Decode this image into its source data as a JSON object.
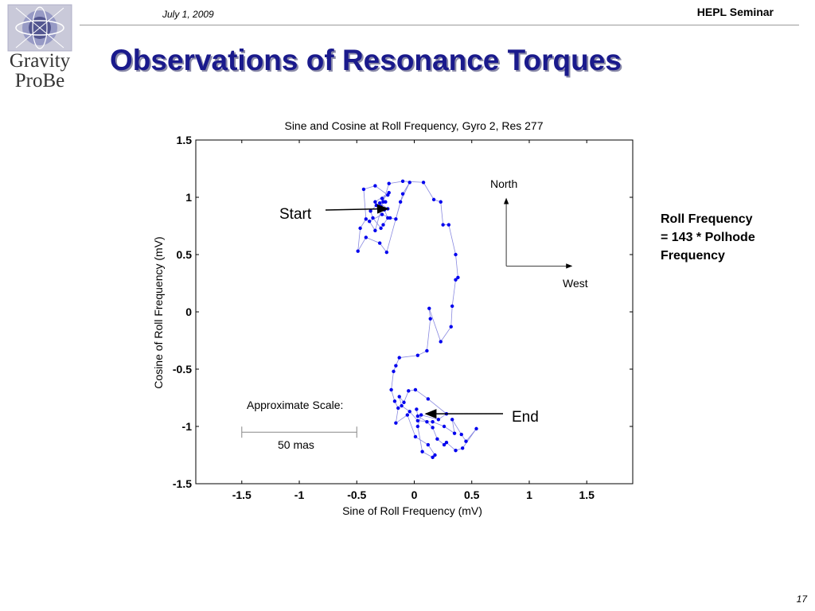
{
  "header": {
    "date": "July 1, 2009",
    "seminar": "HEPL Seminar",
    "logo_text_1": "Gravity",
    "logo_text_2": "ProBe"
  },
  "slide": {
    "title": "Observations of Resonance Torques",
    "note_line1": "Roll Frequency",
    "note_line2": "= 143 * Polhode",
    "note_line3": "Frequency",
    "page_number": "17"
  },
  "colors": {
    "title": "#1a1a8c",
    "data": "#0000ee",
    "line": "#8888dd"
  },
  "chart_data": {
    "type": "scatter",
    "title": "Sine and Cosine at Roll Frequency, Gyro 2, Res 277",
    "xlabel": "Sine of Roll Frequency (mV)",
    "ylabel": "Cosine of Roll Frequency (mV)",
    "xlim": [
      -1.9,
      1.9
    ],
    "ylim": [
      -1.5,
      1.5
    ],
    "xticks": [
      "-1.5",
      "-1",
      "-0.5",
      "0",
      "0.5",
      "1",
      "1.5"
    ],
    "yticks": [
      "1.5",
      "1",
      "0.5",
      "0",
      "-0.5",
      "-1",
      "-1.5"
    ],
    "grid": false,
    "connected": true,
    "series": [
      {
        "x": [
          -0.29,
          -0.23,
          -0.3,
          -0.22,
          -0.34,
          -0.3,
          -0.26,
          -0.23,
          -0.27,
          -0.29,
          -0.36,
          -0.38,
          -0.33,
          -0.25,
          -0.28,
          -0.23,
          -0.34,
          -0.44,
          -0.42,
          -0.47,
          -0.49,
          -0.42,
          -0.3,
          -0.24,
          -0.12,
          -0.04,
          -0.1,
          -0.16,
          -0.21,
          -0.28,
          -0.39,
          -0.34,
          -0.27,
          -0.22,
          -0.1,
          0.08,
          0.17,
          0.23,
          0.25,
          0.3,
          0.36,
          0.38,
          0.36,
          0.33,
          0.32,
          0.23,
          0.13,
          0.14,
          0.11,
          0.03,
          -0.13,
          -0.16,
          -0.18,
          -0.2,
          -0.17,
          -0.14,
          -0.16,
          -0.06,
          0.01,
          0.12,
          0.18,
          0.16,
          0.07,
          0.03,
          0.06,
          0.21,
          0.28,
          0.12,
          0.01,
          -0.05,
          -0.09,
          -0.13,
          -0.11,
          -0.04,
          0.03,
          0.16,
          0.26,
          0.35,
          0.33,
          0.41,
          0.45,
          0.54,
          0.42,
          0.36,
          0.28,
          0.26,
          0.2,
          0.16,
          0.11,
          0.03,
          0.02
        ],
        "y": [
          0.92,
          0.9,
          0.95,
          1.04,
          0.96,
          0.92,
          0.89,
          0.82,
          0.76,
          0.73,
          0.82,
          0.88,
          0.93,
          0.96,
          0.99,
          1.02,
          1.1,
          1.07,
          0.81,
          0.73,
          0.53,
          0.65,
          0.6,
          0.52,
          0.96,
          1.13,
          1.03,
          0.81,
          0.82,
          0.85,
          0.79,
          0.71,
          0.96,
          1.12,
          1.14,
          1.13,
          0.98,
          0.96,
          0.76,
          0.76,
          0.5,
          0.3,
          0.28,
          0.05,
          -0.13,
          -0.26,
          0.03,
          -0.06,
          -0.34,
          -0.38,
          -0.4,
          -0.47,
          -0.52,
          -0.68,
          -0.78,
          -0.84,
          -0.97,
          -0.9,
          -1.09,
          -1.16,
          -1.25,
          -1.27,
          -1.22,
          -1.0,
          -0.9,
          -0.94,
          -0.89,
          -0.76,
          -0.68,
          -0.69,
          -0.79,
          -0.74,
          -0.82,
          -0.87,
          -0.95,
          -0.96,
          -1.0,
          -1.06,
          -0.94,
          -1.07,
          -1.13,
          -1.02,
          -1.19,
          -1.21,
          -1.14,
          -1.16,
          -1.11,
          -1.01,
          -0.96,
          -0.91,
          -0.85
        ]
      }
    ],
    "annotations": {
      "start": "Start",
      "end": "End",
      "north": "North",
      "west": "West",
      "scale_label": "Approximate Scale:",
      "scale_value": "50 mas"
    },
    "start_point": [
      -0.23,
      0.9
    ],
    "end_point": [
      0.1,
      -0.89
    ],
    "compass_origin": [
      0.8,
      0.4
    ],
    "compass_north_tip": [
      0.8,
      0.99
    ],
    "compass_west_tip": [
      1.37,
      0.4
    ],
    "scale_bar": [
      -1.5,
      -0.5,
      -1.05
    ]
  }
}
